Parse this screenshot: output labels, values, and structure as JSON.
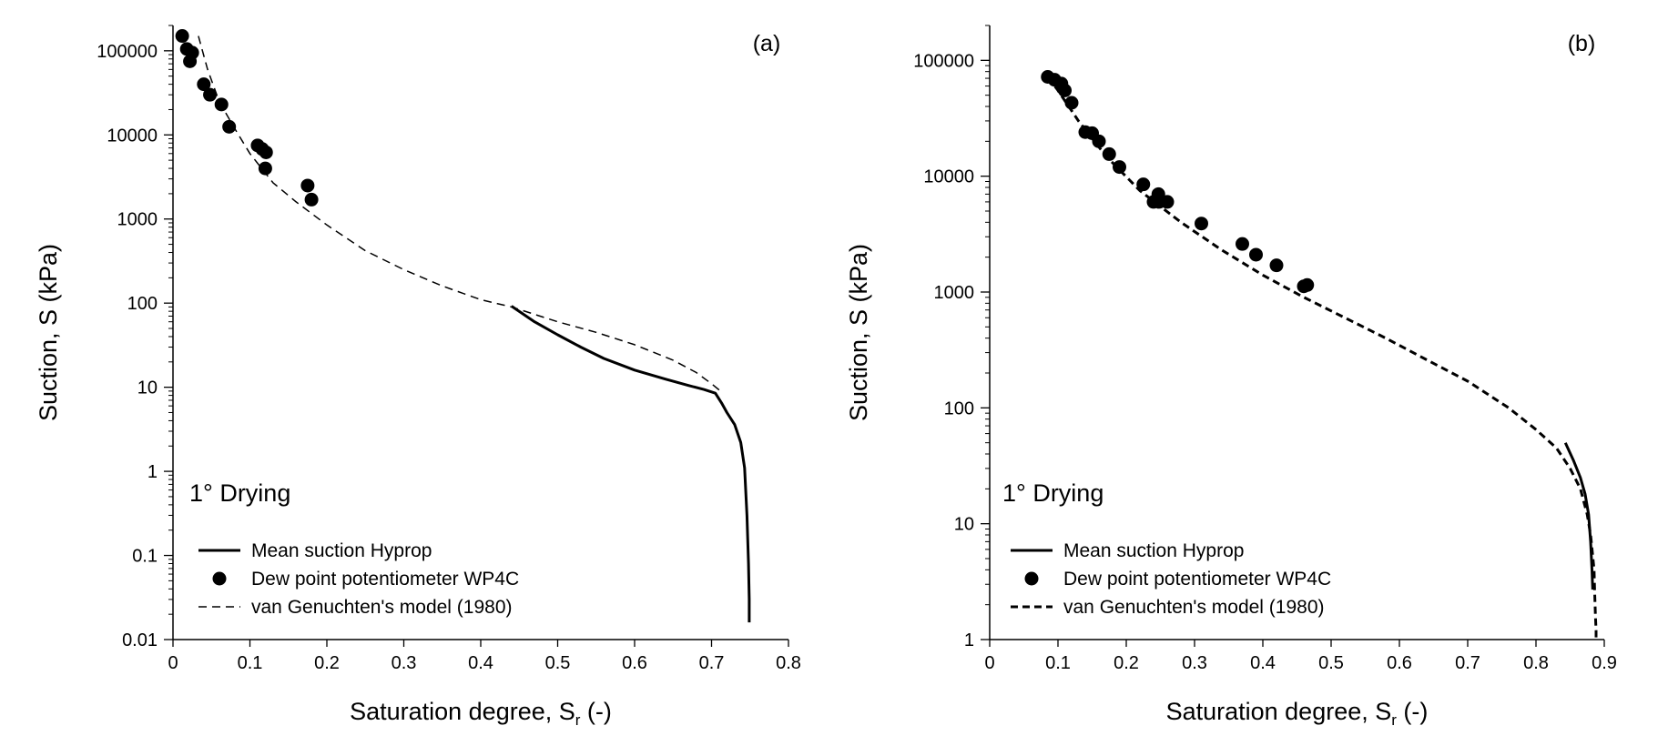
{
  "chart_data": [
    {
      "panel": "(a)",
      "type": "scatter",
      "y_scale": "log",
      "xlabel": "Saturation degree, S",
      "xlabel_sub": "r",
      "xlabel_suffix": " (-)",
      "ylabel": "Suction, S (kPa)",
      "xlim": [
        0,
        0.8
      ],
      "ylim": [
        0.01,
        200000
      ],
      "x_ticks": [
        "0",
        "0.1",
        "0.2",
        "0.3",
        "0.4",
        "0.5",
        "0.6",
        "0.7",
        "0.8"
      ],
      "x_tick_values": [
        0,
        0.1,
        0.2,
        0.3,
        0.4,
        0.5,
        0.6,
        0.7,
        0.8
      ],
      "y_ticks": [
        "0.01",
        "0.1",
        "1",
        "10",
        "100",
        "1000",
        "10000",
        "100000"
      ],
      "y_tick_values": [
        0.01,
        0.1,
        1,
        10,
        100,
        1000,
        10000,
        100000
      ],
      "annotation": "1° Drying",
      "legend": [
        "Mean suction Hyprop",
        "Dew point potentiometer WP4C",
        "van Genuchten's model (1980)"
      ],
      "series": [
        {
          "name": "Mean suction Hyprop",
          "style": "solid",
          "x": [
            0.44,
            0.47,
            0.5,
            0.53,
            0.56,
            0.6,
            0.64,
            0.67,
            0.69,
            0.705,
            0.713,
            0.72,
            0.73,
            0.738,
            0.743,
            0.746,
            0.748,
            0.749,
            0.749
          ],
          "y": [
            92,
            60,
            42,
            30,
            22,
            16,
            12.5,
            10.5,
            9.4,
            8.5,
            6.5,
            5,
            3.6,
            2.2,
            1.1,
            0.3,
            0.08,
            0.03,
            0.016
          ]
        },
        {
          "name": "Dew point potentiometer WP4C",
          "style": "marker",
          "x": [
            0.012,
            0.018,
            0.025,
            0.022,
            0.04,
            0.048,
            0.063,
            0.073,
            0.11,
            0.116,
            0.121,
            0.12,
            0.175,
            0.18
          ],
          "y": [
            150000,
            105000,
            95000,
            75000,
            40000,
            30000,
            23000,
            12500,
            7500,
            6800,
            6200,
            4000,
            2500,
            1700
          ]
        },
        {
          "name": "van Genuchten's model (1980)",
          "style": "dashed",
          "x": [
            0.033,
            0.045,
            0.06,
            0.08,
            0.1,
            0.13,
            0.16,
            0.2,
            0.25,
            0.3,
            0.35,
            0.4,
            0.44,
            0.5,
            0.55,
            0.6,
            0.65,
            0.68,
            0.7,
            0.715
          ],
          "y": [
            150000,
            60000,
            25000,
            12000,
            6000,
            2700,
            1600,
            850,
            420,
            250,
            160,
            110,
            90,
            60,
            45,
            32,
            21,
            15,
            11,
            8.5
          ]
        }
      ]
    },
    {
      "panel": "(b)",
      "type": "scatter",
      "y_scale": "log",
      "xlabel": "Saturation degree, S",
      "xlabel_sub": "r",
      "xlabel_suffix": " (-)",
      "ylabel": "Suction, S (kPa)",
      "xlim": [
        0,
        0.9
      ],
      "ylim": [
        1,
        200000
      ],
      "x_ticks": [
        "0",
        "0.1",
        "0.2",
        "0.3",
        "0.4",
        "0.5",
        "0.6",
        "0.7",
        "0.8",
        "0.9"
      ],
      "x_tick_values": [
        0,
        0.1,
        0.2,
        0.3,
        0.4,
        0.5,
        0.6,
        0.7,
        0.8,
        0.9
      ],
      "y_ticks": [
        "1",
        "10",
        "100",
        "1000",
        "10000",
        "100000"
      ],
      "y_tick_values": [
        1,
        10,
        100,
        1000,
        10000,
        100000
      ],
      "annotation": "1° Drying",
      "legend": [
        "Mean suction Hyprop",
        "Dew point potentiometer WP4C",
        "van Genuchten's model (1980)"
      ],
      "series": [
        {
          "name": "Mean suction Hyprop",
          "style": "solid",
          "x": [
            0.843,
            0.855,
            0.865,
            0.872,
            0.877,
            0.88,
            0.882,
            0.883
          ],
          "y": [
            50,
            35,
            25,
            18,
            12,
            7,
            4,
            2.7
          ]
        },
        {
          "name": "Dew point potentiometer WP4C",
          "style": "marker",
          "x": [
            0.085,
            0.095,
            0.105,
            0.11,
            0.12,
            0.14,
            0.15,
            0.16,
            0.175,
            0.19,
            0.225,
            0.24,
            0.247,
            0.248,
            0.26,
            0.31,
            0.37,
            0.39,
            0.42,
            0.46,
            0.465
          ],
          "y": [
            72000,
            68000,
            63000,
            55000,
            43000,
            24000,
            23500,
            20000,
            15500,
            12000,
            8500,
            6000,
            7000,
            6000,
            6000,
            3900,
            2600,
            2100,
            1700,
            1120,
            1150
          ]
        },
        {
          "name": "van Genuchten's model (1980)",
          "style": "dashed",
          "x": [
            0.085,
            0.1,
            0.13,
            0.17,
            0.22,
            0.28,
            0.34,
            0.4,
            0.46,
            0.52,
            0.58,
            0.64,
            0.7,
            0.76,
            0.8,
            0.83,
            0.85,
            0.865,
            0.875,
            0.88,
            0.885,
            0.886,
            0.887,
            0.888,
            0.888
          ],
          "y": [
            72000,
            55000,
            30000,
            15000,
            7500,
            4000,
            2300,
            1400,
            900,
            600,
            400,
            260,
            170,
            100,
            65,
            45,
            30,
            20,
            12,
            8,
            4,
            2.5,
            1.6,
            1.2,
            1
          ]
        }
      ]
    }
  ]
}
